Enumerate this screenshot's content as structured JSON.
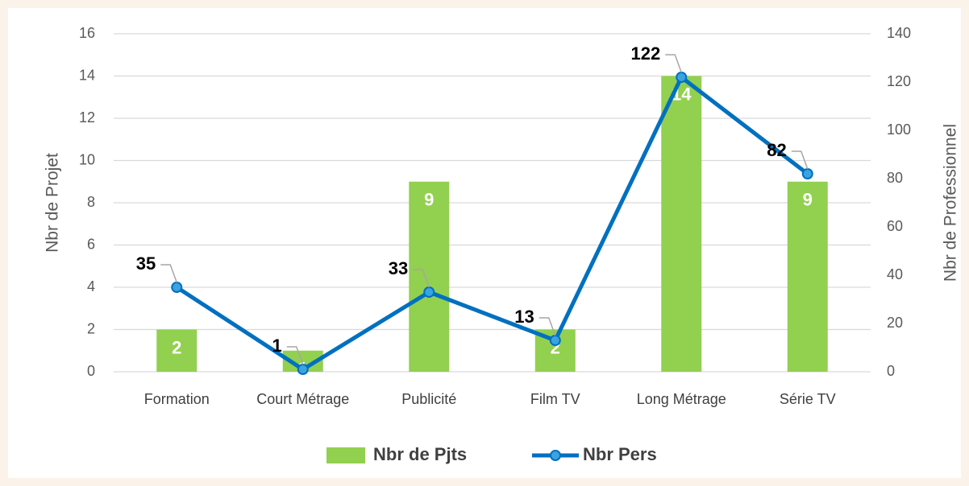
{
  "chart_data": {
    "type": "bar",
    "categories": [
      "Formation",
      "Court Métrage",
      "Publicité",
      "Film TV",
      "Long Métrage",
      "Série TV"
    ],
    "series": [
      {
        "name": "Nbr de Pjts",
        "color": "#92d050",
        "type": "bar",
        "values": [
          2,
          1,
          9,
          2,
          14,
          9
        ]
      },
      {
        "name": "Nbr Pers",
        "color": "#0070c0",
        "type": "line",
        "axis": "y2",
        "values": [
          35,
          1,
          33,
          13,
          122,
          82
        ]
      }
    ],
    "ylabel": "Nbr de Projet",
    "y2label": "Nbr de Professionnel",
    "ylim": [
      0,
      16
    ],
    "yticks": [
      0,
      2,
      4,
      6,
      8,
      10,
      12,
      14,
      16
    ],
    "y2lim": [
      0,
      140
    ],
    "y2ticks": [
      0,
      20,
      40,
      60,
      80,
      100,
      120,
      140
    ],
    "grid": true,
    "legend": "bottom"
  }
}
